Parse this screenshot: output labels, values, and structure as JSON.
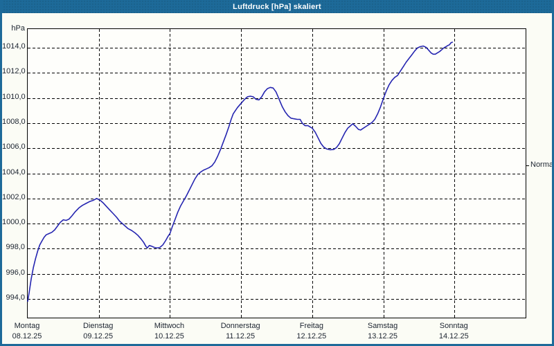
{
  "window": {
    "title": "Luftdruck [hPa] skaliert"
  },
  "colors": {
    "titlebar": "#1d6a99",
    "window_border": "#1d6a99",
    "background": "#fbfcf5",
    "plot_background": "#fefefb",
    "grid": "#000000",
    "text": "#1c2430",
    "line": "#2424b0"
  },
  "chart_data": {
    "type": "line",
    "title": "Luftdruck [hPa] skaliert",
    "xlabel": "",
    "ylabel": "hPa",
    "grid": "dashed",
    "legend": "none",
    "y_axis": {
      "unit_label": "hPa",
      "ylim": [
        992.5,
        1015.5
      ],
      "tick_values": [
        1014,
        1012,
        1010,
        1008,
        1006,
        1004,
        1002,
        1000,
        998,
        996,
        994
      ],
      "tick_labels": [
        "1014,0",
        "1012,0",
        "1010,0",
        "1008,0",
        "1006,0",
        "1004,0",
        "1002,0",
        "1000,0",
        "998,0",
        "996,0",
        "994,0"
      ]
    },
    "x_axis": {
      "xlim_days": [
        0,
        7
      ],
      "gridline_days": [
        1,
        2,
        3,
        4,
        5,
        6
      ],
      "tick_days": [
        0,
        1,
        2,
        3,
        4,
        5,
        6
      ],
      "day_names": [
        "Montag",
        "Dienstag",
        "Mittwoch",
        "Donnerstag",
        "Freitag",
        "Samstag",
        "Sonntag"
      ],
      "day_dates": [
        "08.12.25",
        "09.12.25",
        "10.12.25",
        "11.12.25",
        "12.12.25",
        "13.12.25",
        "14.12.25"
      ]
    },
    "annotations": [
      {
        "label": "Normal",
        "value": 1004.6,
        "position": "right"
      }
    ],
    "series": [
      {
        "name": "Luftdruck",
        "color": "#2424b0",
        "points": [
          [
            0.0,
            993.8
          ],
          [
            0.02,
            994.5
          ],
          [
            0.05,
            995.6
          ],
          [
            0.08,
            996.5
          ],
          [
            0.11,
            997.2
          ],
          [
            0.14,
            997.8
          ],
          [
            0.17,
            998.3
          ],
          [
            0.2,
            998.6
          ],
          [
            0.23,
            998.9
          ],
          [
            0.26,
            999.1
          ],
          [
            0.3,
            999.2
          ],
          [
            0.34,
            999.3
          ],
          [
            0.38,
            999.5
          ],
          [
            0.42,
            999.8
          ],
          [
            0.46,
            1000.1
          ],
          [
            0.5,
            1000.3
          ],
          [
            0.54,
            1000.25
          ],
          [
            0.58,
            1000.35
          ],
          [
            0.62,
            1000.6
          ],
          [
            0.67,
            1000.95
          ],
          [
            0.72,
            1001.25
          ],
          [
            0.77,
            1001.45
          ],
          [
            0.82,
            1001.6
          ],
          [
            0.87,
            1001.75
          ],
          [
            0.92,
            1001.85
          ],
          [
            0.97,
            1002.0
          ],
          [
            1.02,
            1001.85
          ],
          [
            1.06,
            1001.65
          ],
          [
            1.1,
            1001.4
          ],
          [
            1.15,
            1001.1
          ],
          [
            1.2,
            1000.8
          ],
          [
            1.25,
            1000.5
          ],
          [
            1.29,
            1000.2
          ],
          [
            1.33,
            1000.0
          ],
          [
            1.37,
            999.8
          ],
          [
            1.41,
            999.6
          ],
          [
            1.46,
            999.45
          ],
          [
            1.51,
            999.25
          ],
          [
            1.55,
            999.05
          ],
          [
            1.59,
            998.8
          ],
          [
            1.63,
            998.5
          ],
          [
            1.66,
            998.2
          ],
          [
            1.68,
            998.05
          ],
          [
            1.71,
            998.25
          ],
          [
            1.74,
            998.2
          ],
          [
            1.78,
            998.1
          ],
          [
            1.82,
            998.05
          ],
          [
            1.86,
            998.1
          ],
          [
            1.9,
            998.3
          ],
          [
            1.94,
            998.65
          ],
          [
            1.97,
            998.95
          ],
          [
            2.0,
            999.2
          ],
          [
            2.03,
            999.7
          ],
          [
            2.07,
            1000.3
          ],
          [
            2.11,
            1000.9
          ],
          [
            2.15,
            1001.4
          ],
          [
            2.19,
            1001.8
          ],
          [
            2.23,
            1002.2
          ],
          [
            2.27,
            1002.65
          ],
          [
            2.31,
            1003.1
          ],
          [
            2.35,
            1003.55
          ],
          [
            2.39,
            1003.9
          ],
          [
            2.43,
            1004.1
          ],
          [
            2.47,
            1004.25
          ],
          [
            2.51,
            1004.35
          ],
          [
            2.55,
            1004.45
          ],
          [
            2.59,
            1004.6
          ],
          [
            2.63,
            1004.9
          ],
          [
            2.67,
            1005.35
          ],
          [
            2.71,
            1005.9
          ],
          [
            2.75,
            1006.5
          ],
          [
            2.79,
            1007.1
          ],
          [
            2.83,
            1007.75
          ],
          [
            2.86,
            1008.3
          ],
          [
            2.89,
            1008.75
          ],
          [
            2.92,
            1009.0
          ],
          [
            2.95,
            1009.25
          ],
          [
            2.98,
            1009.45
          ],
          [
            3.01,
            1009.65
          ],
          [
            3.05,
            1009.9
          ],
          [
            3.09,
            1010.1
          ],
          [
            3.13,
            1010.15
          ],
          [
            3.17,
            1010.1
          ],
          [
            3.21,
            1009.9
          ],
          [
            3.25,
            1009.85
          ],
          [
            3.29,
            1010.1
          ],
          [
            3.33,
            1010.5
          ],
          [
            3.37,
            1010.75
          ],
          [
            3.41,
            1010.85
          ],
          [
            3.45,
            1010.8
          ],
          [
            3.49,
            1010.5
          ],
          [
            3.52,
            1010.1
          ],
          [
            3.55,
            1009.7
          ],
          [
            3.58,
            1009.3
          ],
          [
            3.62,
            1008.9
          ],
          [
            3.66,
            1008.6
          ],
          [
            3.7,
            1008.4
          ],
          [
            3.74,
            1008.35
          ],
          [
            3.79,
            1008.3
          ],
          [
            3.83,
            1008.3
          ],
          [
            3.86,
            1008.0
          ],
          [
            3.9,
            1007.8
          ],
          [
            3.94,
            1007.8
          ],
          [
            3.97,
            1007.7
          ],
          [
            4.0,
            1007.6
          ],
          [
            4.04,
            1007.3
          ],
          [
            4.08,
            1006.85
          ],
          [
            4.12,
            1006.4
          ],
          [
            4.16,
            1006.1
          ],
          [
            4.2,
            1005.95
          ],
          [
            4.25,
            1005.88
          ],
          [
            4.3,
            1005.9
          ],
          [
            4.34,
            1006.05
          ],
          [
            4.38,
            1006.35
          ],
          [
            4.42,
            1006.8
          ],
          [
            4.46,
            1007.25
          ],
          [
            4.5,
            1007.6
          ],
          [
            4.54,
            1007.8
          ],
          [
            4.57,
            1007.95
          ],
          [
            4.61,
            1007.75
          ],
          [
            4.65,
            1007.5
          ],
          [
            4.68,
            1007.45
          ],
          [
            4.72,
            1007.6
          ],
          [
            4.76,
            1007.75
          ],
          [
            4.8,
            1007.9
          ],
          [
            4.84,
            1008.05
          ],
          [
            4.88,
            1008.3
          ],
          [
            4.92,
            1008.75
          ],
          [
            4.96,
            1009.3
          ],
          [
            5.0,
            1009.95
          ],
          [
            5.04,
            1010.55
          ],
          [
            5.08,
            1011.05
          ],
          [
            5.12,
            1011.4
          ],
          [
            5.16,
            1011.65
          ],
          [
            5.2,
            1011.8
          ],
          [
            5.24,
            1012.15
          ],
          [
            5.28,
            1012.5
          ],
          [
            5.32,
            1012.85
          ],
          [
            5.36,
            1013.15
          ],
          [
            5.4,
            1013.45
          ],
          [
            5.44,
            1013.75
          ],
          [
            5.48,
            1014.0
          ],
          [
            5.52,
            1014.1
          ],
          [
            5.56,
            1014.15
          ],
          [
            5.6,
            1014.05
          ],
          [
            5.64,
            1013.8
          ],
          [
            5.67,
            1013.6
          ],
          [
            5.7,
            1013.5
          ],
          [
            5.73,
            1013.5
          ],
          [
            5.76,
            1013.6
          ],
          [
            5.79,
            1013.7
          ],
          [
            5.82,
            1013.85
          ],
          [
            5.85,
            1014.0
          ],
          [
            5.88,
            1014.1
          ],
          [
            5.91,
            1014.2
          ],
          [
            5.93,
            1014.25
          ],
          [
            5.95,
            1014.4
          ],
          [
            5.97,
            1014.45
          ]
        ]
      }
    ]
  }
}
